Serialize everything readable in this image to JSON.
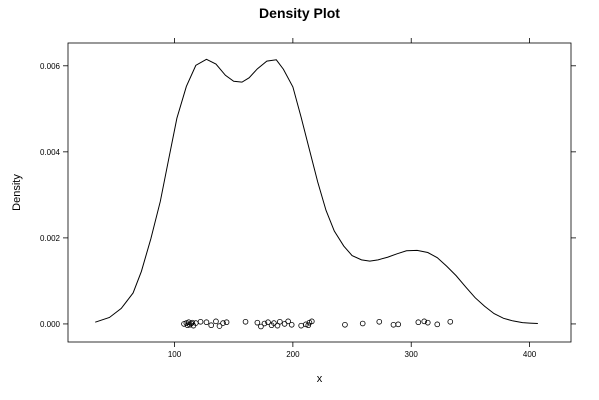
{
  "chart_data": {
    "type": "line",
    "title": "Density Plot",
    "xlabel": "x",
    "ylabel": "Density",
    "xlim": [
      10,
      435
    ],
    "ylim": [
      -0.00042,
      0.00653
    ],
    "x_ticks": [
      100,
      200,
      300,
      400
    ],
    "x_tick_labels": [
      "100",
      "200",
      "300",
      "400"
    ],
    "y_ticks": [
      0,
      0.002,
      0.004,
      0.006
    ],
    "y_tick_labels": [
      "0.000",
      "0.002",
      "0.004",
      "0.006"
    ],
    "grid": false,
    "series": [
      {
        "kind": "density-curve",
        "x": [
          33,
          45,
          55,
          65,
          72,
          80,
          88,
          95,
          102,
          110,
          118,
          127,
          135,
          143,
          150,
          157,
          163,
          170,
          178,
          186,
          192,
          200,
          207,
          214,
          221,
          228,
          235,
          243,
          250,
          258,
          265,
          272,
          280,
          288,
          296,
          305,
          314,
          322,
          330,
          338,
          346,
          354,
          362,
          370,
          378,
          386,
          394,
          400,
          407
        ],
        "y": [
          4e-05,
          0.00015,
          0.00036,
          0.00072,
          0.00122,
          0.00198,
          0.00285,
          0.00382,
          0.00478,
          0.00552,
          0.00601,
          0.00615,
          0.00604,
          0.00578,
          0.00564,
          0.00562,
          0.00572,
          0.00593,
          0.00611,
          0.00614,
          0.00592,
          0.00551,
          0.0048,
          0.00405,
          0.0033,
          0.00264,
          0.00216,
          0.00181,
          0.00159,
          0.00149,
          0.00146,
          0.00149,
          0.00155,
          0.00163,
          0.0017,
          0.00171,
          0.00166,
          0.00154,
          0.00134,
          0.00112,
          0.00086,
          0.00061,
          0.00041,
          0.00024,
          0.00013,
          7e-05,
          3e-05,
          2e-05,
          1e-05
        ]
      },
      {
        "kind": "rug-points",
        "x": [
          108,
          110,
          111,
          112,
          113,
          114,
          115,
          116,
          118,
          122,
          127,
          131,
          135,
          138,
          141,
          144,
          160,
          170,
          173,
          176,
          179,
          182,
          184,
          187,
          189,
          193,
          196,
          199,
          207,
          211,
          213,
          214,
          216,
          244,
          259,
          273,
          285,
          289,
          306,
          311,
          314,
          322,
          333
        ],
        "y": [
          0,
          2e-05,
          -3e-05,
          4e-05,
          -2e-05,
          1e-05,
          3e-05,
          -4e-05,
          2e-05,
          5e-05,
          4e-05,
          -3e-05,
          6e-05,
          -5e-05,
          2e-05,
          4e-05,
          5e-05,
          3e-05,
          -6e-05,
          1e-05,
          4e-05,
          -3e-05,
          2e-05,
          -4e-05,
          5e-05,
          0,
          6e-05,
          -2e-05,
          -4e-05,
          -1e-05,
          -3e-05,
          3e-05,
          6e-05,
          -2e-05,
          1e-05,
          5e-05,
          -2e-05,
          -1e-05,
          4e-05,
          6e-05,
          3e-05,
          -1e-05,
          5e-05
        ]
      }
    ]
  }
}
